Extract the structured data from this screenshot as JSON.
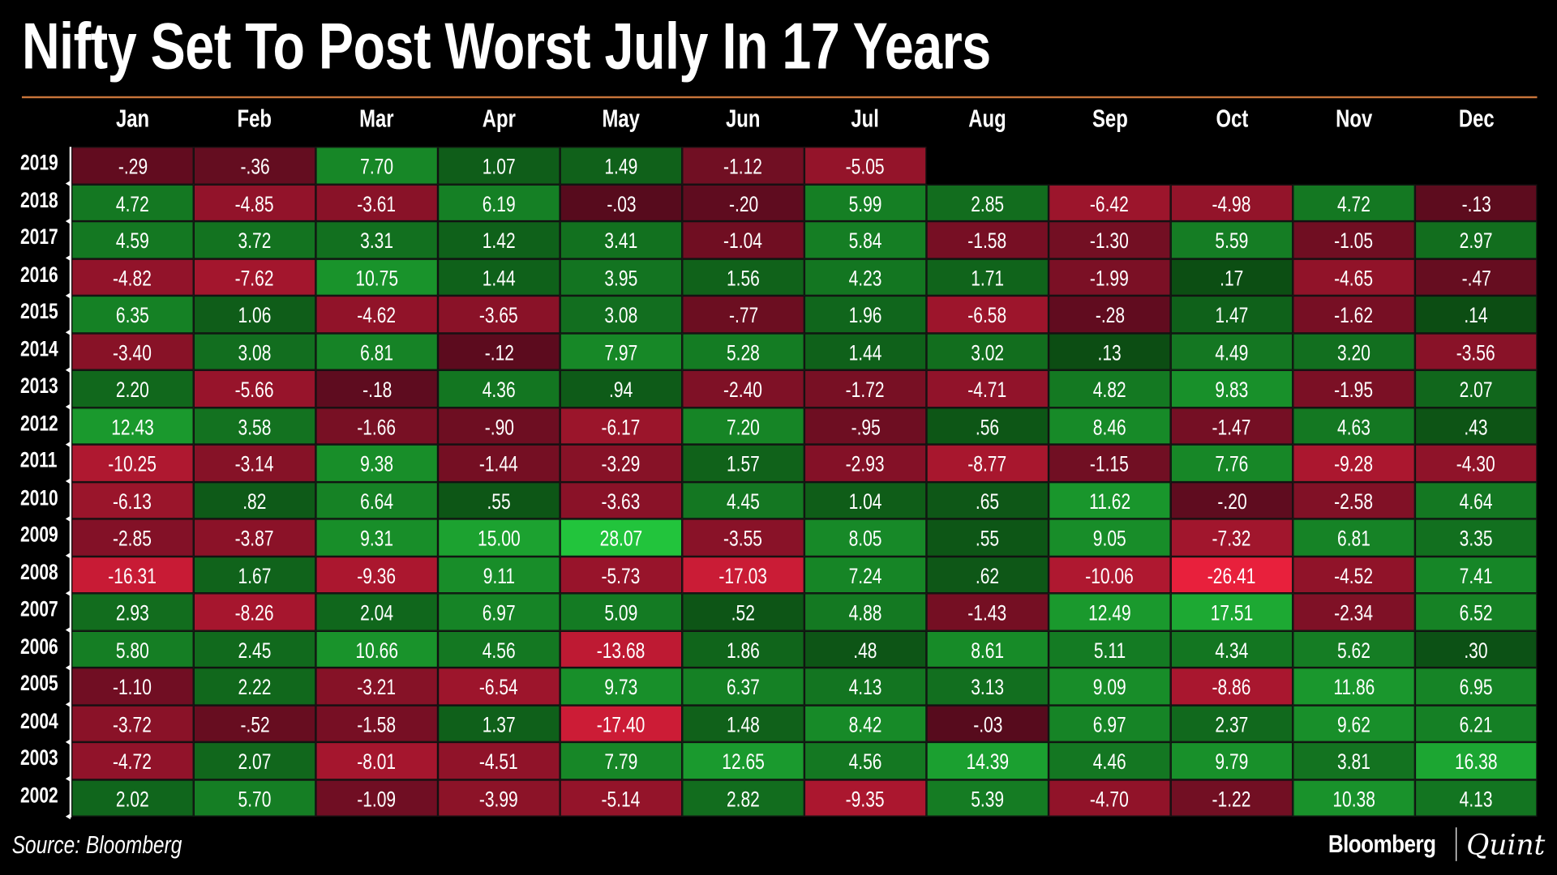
{
  "chart_data": {
    "type": "heatmap",
    "title": "Nifty Set To Post Worst July In 17 Years",
    "columns": [
      "Jan",
      "Feb",
      "Mar",
      "Apr",
      "May",
      "Jun",
      "Jul",
      "Aug",
      "Sep",
      "Oct",
      "Nov",
      "Dec"
    ],
    "rows": [
      {
        "year": "2019",
        "values": [
          "-.29",
          "-.36",
          "7.70",
          "1.07",
          "1.49",
          "-1.12",
          "-5.05",
          null,
          null,
          null,
          null,
          null
        ]
      },
      {
        "year": "2018",
        "values": [
          "4.72",
          "-4.85",
          "-3.61",
          "6.19",
          "-.03",
          "-.20",
          "5.99",
          "2.85",
          "-6.42",
          "-4.98",
          "4.72",
          "-.13"
        ]
      },
      {
        "year": "2017",
        "values": [
          "4.59",
          "3.72",
          "3.31",
          "1.42",
          "3.41",
          "-1.04",
          "5.84",
          "-1.58",
          "-1.30",
          "5.59",
          "-1.05",
          "2.97"
        ]
      },
      {
        "year": "2016",
        "values": [
          "-4.82",
          "-7.62",
          "10.75",
          "1.44",
          "3.95",
          "1.56",
          "4.23",
          "1.71",
          "-1.99",
          ".17",
          "-4.65",
          "-.47"
        ]
      },
      {
        "year": "2015",
        "values": [
          "6.35",
          "1.06",
          "-4.62",
          "-3.65",
          "3.08",
          "-.77",
          "1.96",
          "-6.58",
          "-.28",
          "1.47",
          "-1.62",
          ".14"
        ]
      },
      {
        "year": "2014",
        "values": [
          "-3.40",
          "3.08",
          "6.81",
          "-.12",
          "7.97",
          "5.28",
          "1.44",
          "3.02",
          ".13",
          "4.49",
          "3.20",
          "-3.56"
        ]
      },
      {
        "year": "2013",
        "values": [
          "2.20",
          "-5.66",
          "-.18",
          "4.36",
          ".94",
          "-2.40",
          "-1.72",
          "-4.71",
          "4.82",
          "9.83",
          "-1.95",
          "2.07"
        ]
      },
      {
        "year": "2012",
        "values": [
          "12.43",
          "3.58",
          "-1.66",
          "-.90",
          "-6.17",
          "7.20",
          "-.95",
          ".56",
          "8.46",
          "-1.47",
          "4.63",
          ".43"
        ]
      },
      {
        "year": "2011",
        "values": [
          "-10.25",
          "-3.14",
          "9.38",
          "-1.44",
          "-3.29",
          "1.57",
          "-2.93",
          "-8.77",
          "-1.15",
          "7.76",
          "-9.28",
          "-4.30"
        ]
      },
      {
        "year": "2010",
        "values": [
          "-6.13",
          ".82",
          "6.64",
          ".55",
          "-3.63",
          "4.45",
          "1.04",
          ".65",
          "11.62",
          "-.20",
          "-2.58",
          "4.64"
        ]
      },
      {
        "year": "2009",
        "values": [
          "-2.85",
          "-3.87",
          "9.31",
          "15.00",
          "28.07",
          "-3.55",
          "8.05",
          ".55",
          "9.05",
          "-7.32",
          "6.81",
          "3.35"
        ]
      },
      {
        "year": "2008",
        "values": [
          "-16.31",
          "1.67",
          "-9.36",
          "9.11",
          "-5.73",
          "-17.03",
          "7.24",
          ".62",
          "-10.06",
          "-26.41",
          "-4.52",
          "7.41"
        ]
      },
      {
        "year": "2007",
        "values": [
          "2.93",
          "-8.26",
          "2.04",
          "6.97",
          "5.09",
          ".52",
          "4.88",
          "-1.43",
          "12.49",
          "17.51",
          "-2.34",
          "6.52"
        ]
      },
      {
        "year": "2006",
        "values": [
          "5.80",
          "2.45",
          "10.66",
          "4.56",
          "-13.68",
          "1.86",
          ".48",
          "8.61",
          "5.11",
          "4.34",
          "5.62",
          ".30"
        ]
      },
      {
        "year": "2005",
        "values": [
          "-1.10",
          "2.22",
          "-3.21",
          "-6.54",
          "9.73",
          "6.37",
          "4.13",
          "3.13",
          "9.09",
          "-8.86",
          "11.86",
          "6.95"
        ]
      },
      {
        "year": "2004",
        "values": [
          "-3.72",
          "-.52",
          "-1.58",
          "1.37",
          "-17.40",
          "1.48",
          "8.42",
          "-.03",
          "6.97",
          "2.37",
          "9.62",
          "6.21"
        ]
      },
      {
        "year": "2003",
        "values": [
          "-4.72",
          "2.07",
          "-8.01",
          "-4.51",
          "7.79",
          "12.65",
          "4.56",
          "14.39",
          "4.46",
          "9.79",
          "3.81",
          "16.38"
        ]
      },
      {
        "year": "2002",
        "values": [
          "2.02",
          "5.70",
          "-1.09",
          "-3.99",
          "-5.14",
          "2.82",
          "-9.35",
          "5.39",
          "-4.70",
          "-1.22",
          "10.38",
          "4.13"
        ]
      }
    ],
    "colors": {
      "neg_low": "#520a1c",
      "neg_high": "#e8203c",
      "pos_low": "#0a4410",
      "pos_high": "#22c43c"
    }
  },
  "footer": {
    "source": "Source: Bloomberg",
    "logo_left": "Bloomberg",
    "logo_right": "Quint"
  },
  "colors": {
    "rule": "#c8743a",
    "background": "#000000"
  }
}
